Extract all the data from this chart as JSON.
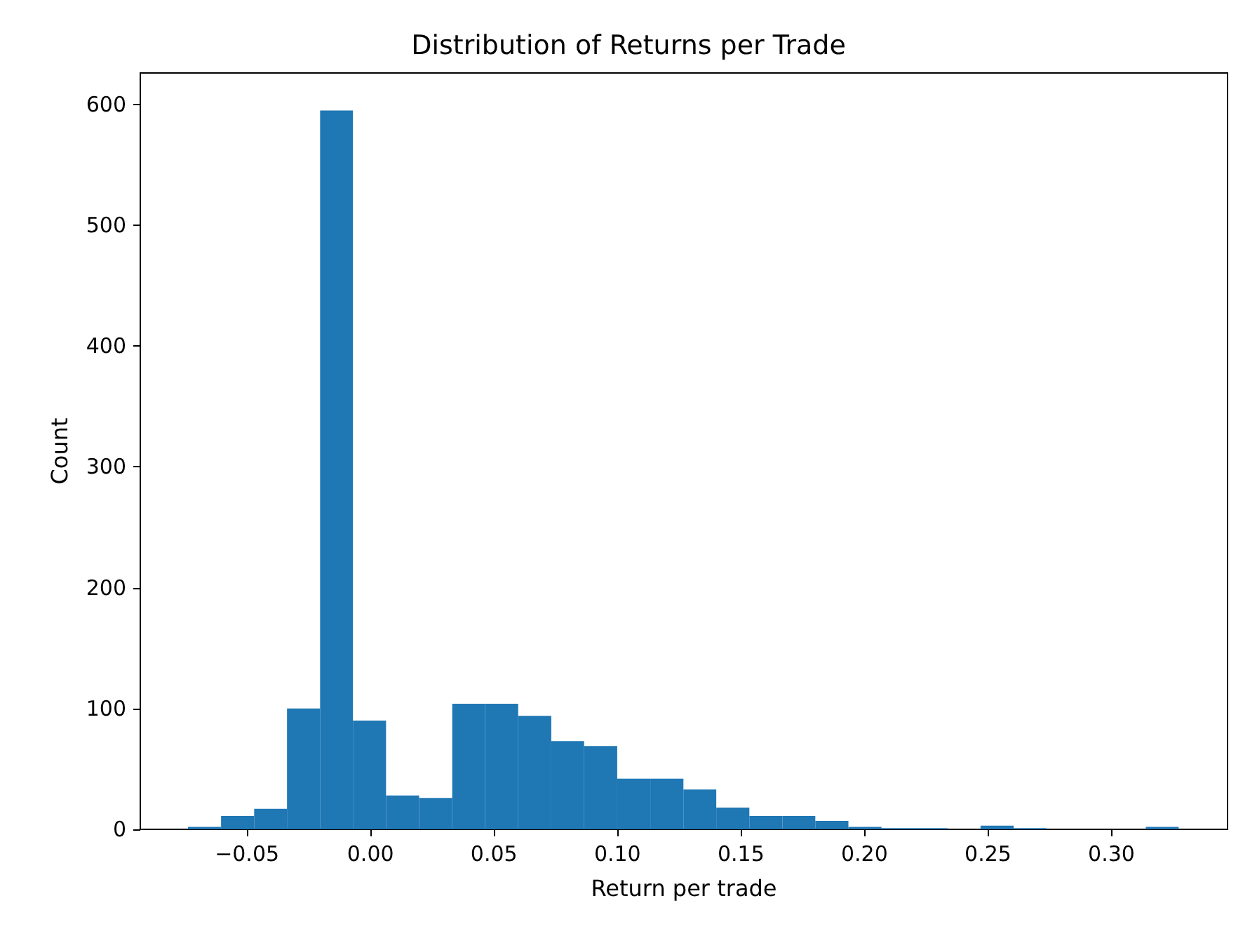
{
  "chart_data": {
    "type": "histogram",
    "title": "Distribution of Returns per Trade",
    "xlabel": "Return per trade",
    "ylabel": "Count",
    "color": "#1f77b4",
    "bins": [
      -0.0739,
      -0.0605,
      -0.0471,
      -0.0338,
      -0.0204,
      -0.0071,
      0.0063,
      0.0197,
      0.0331,
      0.0464,
      0.0598,
      0.0732,
      0.0865,
      0.0999,
      0.1133,
      0.1267,
      0.14,
      0.1534,
      0.1668,
      0.1801,
      0.1935,
      0.2069,
      0.2203,
      0.2336,
      0.247,
      0.2604,
      0.2737,
      0.2871,
      0.3005,
      0.3139,
      0.3272
    ],
    "values": [
      2,
      11,
      17,
      100,
      595,
      90,
      28,
      26,
      104,
      104,
      94,
      73,
      69,
      42,
      42,
      33,
      18,
      11,
      11,
      7,
      2,
      1,
      1,
      0,
      3,
      1,
      0,
      0,
      0,
      2
    ],
    "xlim": [
      -0.0932,
      0.347
    ],
    "ylim": [
      0,
      626
    ],
    "xticks": [
      {
        "value": -0.05,
        "label": "−0.05"
      },
      {
        "value": 0,
        "label": "0.00"
      },
      {
        "value": 0.05,
        "label": "0.05"
      },
      {
        "value": 0.1,
        "label": "0.10"
      },
      {
        "value": 0.15,
        "label": "0.15"
      },
      {
        "value": 0.2,
        "label": "0.20"
      },
      {
        "value": 0.25,
        "label": "0.25"
      },
      {
        "value": 0.3,
        "label": "0.30"
      }
    ],
    "yticks": [
      0,
      100,
      200,
      300,
      400,
      500,
      600
    ]
  }
}
